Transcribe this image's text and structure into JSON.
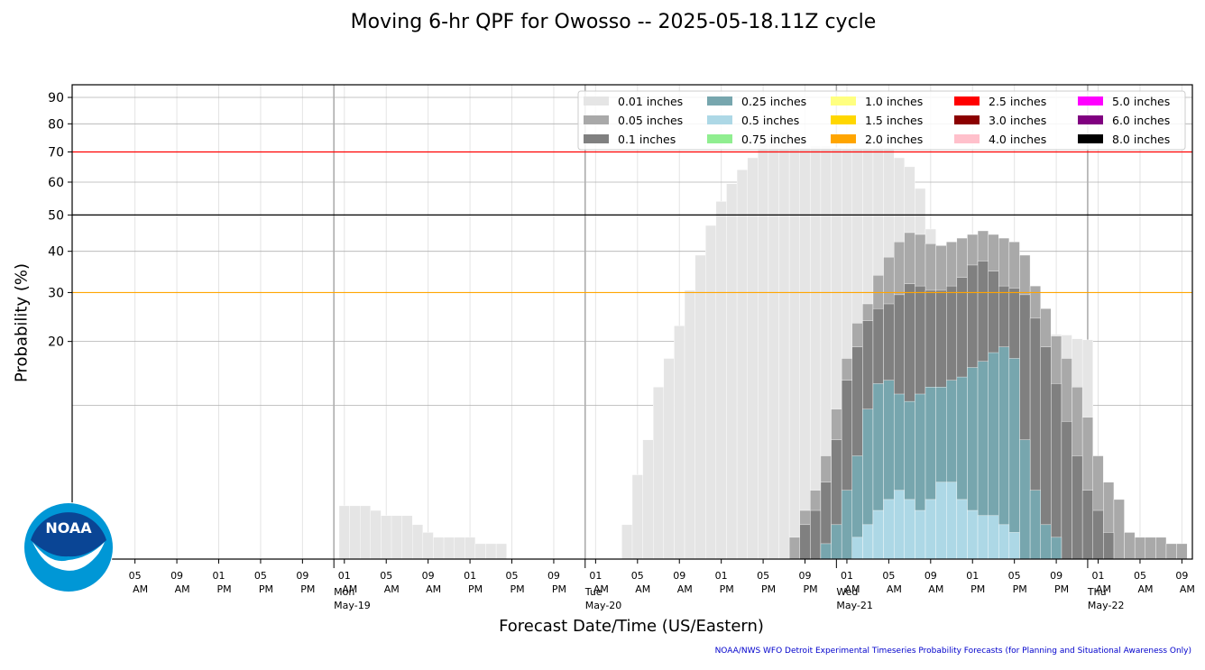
{
  "chart_data": {
    "type": "bar",
    "title": "Moving 6-hr QPF for Owosso -- 2025-05-18.11Z cycle",
    "ylabel": "Probability (%)",
    "xlabel": "Forecast Date/Time (US/Eastern)",
    "credit": "NOAA/NWS WFO Detroit Experimental Timeseries Probability Forecasts (for Planning and Situational Awareness Only)",
    "y_scale": "sqrt",
    "ylim": [
      0,
      95
    ],
    "yticks": [
      20,
      30,
      40,
      50,
      60,
      70,
      80,
      90
    ],
    "reference_lines": [
      {
        "value": 70,
        "color": "#ff0000"
      },
      {
        "value": 50,
        "color": "#000000"
      },
      {
        "value": 30,
        "color": "#ffa500"
      }
    ],
    "xlim": [
      -6,
      101
    ],
    "x_ticks": [
      {
        "x": 0,
        "time": "05",
        "ampm": "AM"
      },
      {
        "x": 4,
        "time": "09",
        "ampm": "AM"
      },
      {
        "x": 8,
        "time": "01",
        "ampm": "PM"
      },
      {
        "x": 12,
        "time": "05",
        "ampm": "PM"
      },
      {
        "x": 16,
        "time": "09",
        "ampm": "PM"
      },
      {
        "x": 20,
        "time": "01",
        "ampm": "AM"
      },
      {
        "x": 24,
        "time": "05",
        "ampm": "AM"
      },
      {
        "x": 28,
        "time": "09",
        "ampm": "AM"
      },
      {
        "x": 32,
        "time": "01",
        "ampm": "PM"
      },
      {
        "x": 36,
        "time": "05",
        "ampm": "PM"
      },
      {
        "x": 40,
        "time": "09",
        "ampm": "PM"
      },
      {
        "x": 44,
        "time": "01",
        "ampm": "AM"
      },
      {
        "x": 48,
        "time": "05",
        "ampm": "AM"
      },
      {
        "x": 52,
        "time": "09",
        "ampm": "AM"
      },
      {
        "x": 56,
        "time": "01",
        "ampm": "PM"
      },
      {
        "x": 60,
        "time": "05",
        "ampm": "PM"
      },
      {
        "x": 64,
        "time": "09",
        "ampm": "PM"
      },
      {
        "x": 68,
        "time": "01",
        "ampm": "AM"
      },
      {
        "x": 72,
        "time": "05",
        "ampm": "AM"
      },
      {
        "x": 76,
        "time": "09",
        "ampm": "AM"
      },
      {
        "x": 80,
        "time": "01",
        "ampm": "PM"
      },
      {
        "x": 84,
        "time": "05",
        "ampm": "PM"
      },
      {
        "x": 88,
        "time": "09",
        "ampm": "PM"
      },
      {
        "x": 92,
        "time": "01",
        "ampm": "AM"
      },
      {
        "x": 96,
        "time": "05",
        "ampm": "AM"
      },
      {
        "x": 100,
        "time": "09",
        "ampm": "AM"
      }
    ],
    "day_markers": [
      {
        "x": 19,
        "day": "Mon",
        "date": "May-19"
      },
      {
        "x": 43,
        "day": "Tue",
        "date": "May-20"
      },
      {
        "x": 67,
        "day": "Wed",
        "date": "May-21"
      },
      {
        "x": 91,
        "day": "Thu",
        "date": "May-22"
      }
    ],
    "legend_placement": "top-right",
    "series": [
      {
        "name": "0.01 inches",
        "color": "#e5e5e5",
        "start": 20,
        "values": [
          1.2,
          1.2,
          1.2,
          1,
          0.8,
          0.8,
          0.8,
          0.5,
          0.3,
          0.2,
          0.2,
          0.2,
          0.2,
          0.1,
          0.1,
          0.1,
          0,
          0,
          0,
          0,
          0,
          0,
          0,
          0,
          0,
          0,
          0,
          0.5,
          3,
          6,
          12.5,
          17,
          23,
          30.5,
          39,
          47,
          54,
          59.5,
          64,
          68,
          73,
          76,
          77,
          72,
          71.5,
          72,
          72,
          71.5,
          71,
          71.5,
          71.5,
          72,
          71.5,
          68,
          65,
          58,
          46,
          38,
          37,
          35,
          33,
          31.5,
          28.5,
          25.5,
          21.5,
          20.3,
          19.8,
          20.8,
          21.3,
          21.2,
          20.5,
          20.3
        ]
      },
      {
        "name": "0.05 inches",
        "color": "#a9a9a9",
        "start": 59,
        "values": [
          0,
          0,
          0,
          0,
          0.2,
          1,
          2,
          4.5,
          9.5,
          17,
          23.5,
          27.5,
          34,
          38.5,
          42.5,
          45,
          44.5,
          42,
          41.5,
          42.5,
          43.5,
          44.5,
          45.5,
          44.5,
          43.5,
          42.5,
          39,
          31.5,
          26.5,
          21,
          17,
          12.5,
          8.5,
          4.5,
          2.5,
          1.5,
          0.3,
          0.2,
          0.2,
          0.2,
          0.1,
          0.1,
          0,
          0,
          1.2,
          1.5
        ]
      },
      {
        "name": "0.1 inches",
        "color": "#808080",
        "start": 59,
        "values": [
          0,
          0,
          0,
          0,
          0,
          0.5,
          1,
          2.5,
          6,
          13.5,
          19,
          24,
          26.5,
          27.5,
          29.5,
          32,
          31.5,
          30.5,
          30.5,
          31.5,
          33.5,
          36.5,
          37.5,
          35,
          31.5,
          31,
          29.5,
          24.5,
          19,
          13,
          8,
          4.5,
          2,
          1,
          0.3
        ]
      },
      {
        "name": "0.25 inches",
        "color": "#77a6ae",
        "start": 59,
        "values": [
          0,
          0,
          0,
          0,
          0,
          0,
          0,
          0.1,
          0.5,
          2,
          4.5,
          9.5,
          13,
          13.5,
          11.5,
          10.5,
          11.5,
          12.5,
          12.5,
          13.5,
          14,
          15.5,
          16.5,
          18,
          19,
          17,
          6,
          2,
          0.5,
          0.2
        ]
      },
      {
        "name": "0.5 inches",
        "color": "#add8e6",
        "start": 59,
        "values": [
          0,
          0,
          0,
          0,
          0,
          0,
          0,
          0,
          0,
          0,
          0.2,
          0.5,
          1,
          1.5,
          2,
          1.5,
          1,
          1.5,
          2.5,
          2.5,
          1.5,
          1,
          0.8,
          0.8,
          0.5,
          0.3
        ]
      },
      {
        "name": "0.75 inches",
        "color": "#90ee90",
        "values": []
      },
      {
        "name": "1.0 inches",
        "color": "#ffff80",
        "values": []
      },
      {
        "name": "1.5 inches",
        "color": "#ffd700",
        "values": []
      },
      {
        "name": "2.0 inches",
        "color": "#ffa500",
        "values": []
      },
      {
        "name": "2.5 inches",
        "color": "#ff0000",
        "values": []
      },
      {
        "name": "3.0 inches",
        "color": "#8b0000",
        "values": []
      },
      {
        "name": "4.0 inches",
        "color": "#ffc0cb",
        "values": []
      },
      {
        "name": "5.0 inches",
        "color": "#ff00ff",
        "values": []
      },
      {
        "name": "6.0 inches",
        "color": "#800080",
        "values": []
      },
      {
        "name": "8.0 inches",
        "color": "#000000",
        "values": []
      }
    ]
  },
  "logo": {
    "text": "NOAA"
  }
}
